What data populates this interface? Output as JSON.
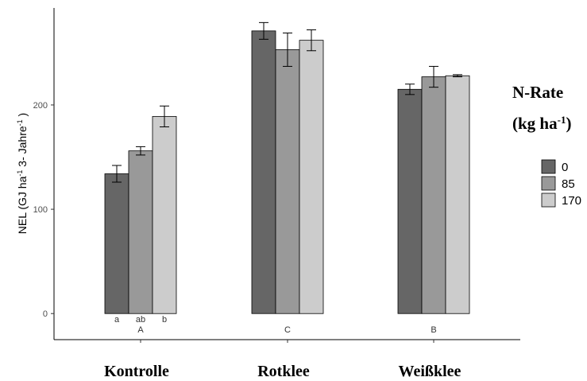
{
  "chart_data": {
    "type": "bar",
    "categories": [
      "Kontrolle",
      "Rotklee",
      "Weißklee"
    ],
    "series": [
      {
        "name": "0",
        "color": "#666666",
        "values": [
          134,
          271,
          215
        ],
        "errors": [
          8,
          8,
          5
        ],
        "letters": [
          "a",
          "",
          ""
        ]
      },
      {
        "name": "85",
        "color": "#999999",
        "values": [
          156,
          253,
          227
        ],
        "errors": [
          4,
          16,
          10
        ],
        "letters": [
          "ab",
          "",
          ""
        ]
      },
      {
        "name": "170",
        "color": "#cccccc",
        "values": [
          189,
          262,
          228
        ],
        "errors": [
          10,
          10,
          1
        ],
        "letters": [
          "b",
          "",
          ""
        ]
      }
    ],
    "group_letters": [
      "A",
      "C",
      "B"
    ],
    "ylabel": {
      "parts": [
        "NEL (GJ  ha",
        "-1",
        "  3- Jahre",
        "-1",
        " )"
      ]
    },
    "yticks": [
      0,
      100,
      200
    ],
    "ylim": [
      -25,
      293
    ],
    "legend": {
      "title_line1": "N-Rate",
      "title_line2": "(kg ha",
      "title_sup": "-1",
      "title_end": ")",
      "position": "right"
    },
    "grid": false
  }
}
